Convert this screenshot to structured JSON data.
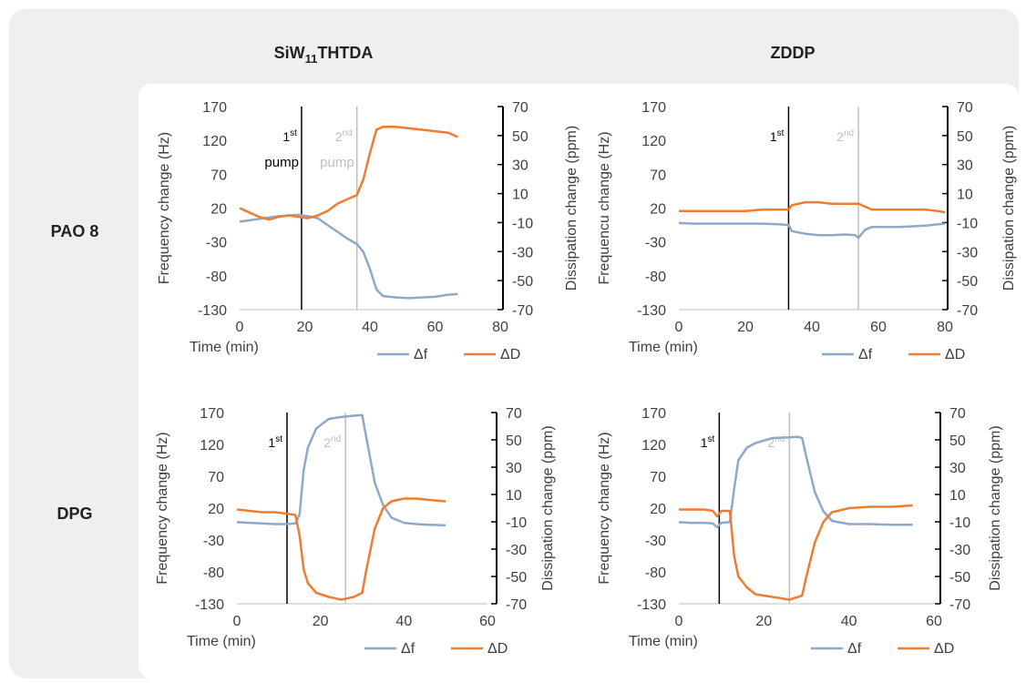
{
  "column_headers": [
    [
      "SiW",
      "11",
      "THTDA"
    ],
    [
      "ZDDP"
    ]
  ],
  "row_headers": [
    "PAO 8",
    "DPG"
  ],
  "chart_data": [
    {
      "type": "line",
      "xlabel": "Time (min)",
      "ylabel": "Frequency change (Hz)",
      "y2label": "Dissipation change (ppm)",
      "xlim": [
        0,
        80
      ],
      "xticks": [
        0,
        20,
        40,
        60,
        80
      ],
      "ylim": [
        -130,
        170
      ],
      "yticks": [
        -130,
        -80,
        -30,
        20,
        70,
        120,
        170
      ],
      "y2lim": [
        -70,
        70
      ],
      "y2ticks": [
        -70,
        -50,
        -30,
        -10,
        10,
        30,
        50,
        70
      ],
      "x": [
        0,
        3,
        6,
        9,
        12,
        15,
        18,
        21,
        24,
        27,
        30,
        33,
        36,
        38,
        40,
        42,
        44,
        48,
        52,
        56,
        60,
        64,
        67
      ],
      "series": [
        {
          "name": "Δf",
          "color": "#8ea9c8",
          "values": [
            0,
            2,
            4,
            6,
            8,
            9,
            10,
            8,
            5,
            -5,
            -15,
            -25,
            -33,
            -45,
            -70,
            -100,
            -110,
            -112,
            -113,
            -112,
            -111,
            -108,
            -107
          ]
        },
        {
          "name": "ΔD",
          "color": "#ed7d31",
          "axis": "y2",
          "values": [
            0,
            -3,
            -6,
            -8,
            -6,
            -5,
            -6,
            -7,
            -5,
            -2,
            3,
            6,
            9,
            20,
            38,
            54,
            56,
            56,
            55,
            54,
            53,
            52,
            49
          ]
        }
      ],
      "annotations": [
        {
          "x": 19,
          "label": "1",
          "sup": "st",
          "line2": "pump",
          "color": "#000000"
        },
        {
          "x": 36,
          "label": "2",
          "sup": "nd",
          "line2": "pump",
          "color": "#bfbfbf"
        }
      ]
    },
    {
      "type": "line",
      "xlabel": "Time (min)",
      "ylabel": "Frequencu change (Hz)",
      "y2label": "Dissipation change (ppm)",
      "xlim": [
        0,
        80
      ],
      "xticks": [
        0,
        20,
        40,
        60,
        80
      ],
      "ylim": [
        -130,
        170
      ],
      "yticks": [
        -130,
        -80,
        -30,
        20,
        70,
        120,
        170
      ],
      "y2lim": [
        -70,
        70
      ],
      "y2ticks": [
        -70,
        -50,
        -30,
        -10,
        10,
        30,
        50,
        70
      ],
      "x": [
        0,
        5,
        10,
        15,
        20,
        25,
        30,
        33,
        34,
        38,
        42,
        46,
        50,
        53,
        54,
        56,
        58,
        62,
        66,
        70,
        74,
        78,
        80
      ],
      "series": [
        {
          "name": "Δf",
          "color": "#8ea9c8",
          "values": [
            -2,
            -3,
            -3,
            -3,
            -3,
            -3,
            -4,
            -5,
            -14,
            -18,
            -20,
            -20,
            -19,
            -20,
            -24,
            -12,
            -8,
            -8,
            -8,
            -7,
            -6,
            -4,
            -3
          ]
        },
        {
          "name": "ΔD",
          "color": "#ed7d31",
          "axis": "y2",
          "values": [
            -2,
            -2,
            -2,
            -2,
            -2,
            -1,
            -1,
            -1,
            2,
            4,
            4,
            3,
            3,
            3,
            3,
            1,
            -1,
            -1,
            -1,
            -1,
            -1,
            -2,
            -3
          ]
        }
      ],
      "annotations": [
        {
          "x": 33,
          "label": "1",
          "sup": "st",
          "color": "#000000"
        },
        {
          "x": 54,
          "label": "2",
          "sup": "nd",
          "color": "#bfbfbf"
        }
      ]
    },
    {
      "type": "line",
      "xlabel": "Time (min)",
      "ylabel": "Frequency change (Hz)",
      "y2label": "Dissipation change (ppm)",
      "xlim": [
        0,
        60
      ],
      "xticks": [
        0,
        20,
        40,
        60
      ],
      "ylim": [
        -130,
        170
      ],
      "yticks": [
        -130,
        -80,
        -30,
        20,
        70,
        120,
        170
      ],
      "y2lim": [
        -70,
        70
      ],
      "y2ticks": [
        -70,
        -50,
        -30,
        -10,
        10,
        30,
        50,
        70
      ],
      "x": [
        0,
        3,
        6,
        9,
        12,
        14,
        15,
        16,
        17,
        19,
        22,
        25,
        28,
        30,
        31,
        33,
        35,
        37,
        40,
        43,
        46,
        50
      ],
      "series": [
        {
          "name": "Δf",
          "color": "#8ea9c8",
          "values": [
            -2,
            -3,
            -4,
            -5,
            -5,
            -4,
            10,
            80,
            115,
            145,
            160,
            163,
            165,
            166,
            130,
            60,
            25,
            5,
            -3,
            -5,
            -6,
            -7
          ]
        },
        {
          "name": "ΔD",
          "color": "#ed7d31",
          "axis": "y2",
          "values": [
            -1,
            -2,
            -3,
            -3,
            -4,
            -5,
            -20,
            -45,
            -55,
            -62,
            -65,
            -67,
            -65,
            -62,
            -45,
            -15,
            0,
            5,
            7,
            7,
            6,
            5
          ]
        }
      ],
      "annotations": [
        {
          "x": 12,
          "label": "1",
          "sup": "st",
          "color": "#000000"
        },
        {
          "x": 26,
          "label": "2",
          "sup": "nd",
          "color": "#bfbfbf"
        }
      ]
    },
    {
      "type": "line",
      "xlabel": "Time (min)",
      "ylabel": "Frequency change (Hz)",
      "y2label": "Dissipation change (ppm)",
      "xlim": [
        0,
        60
      ],
      "xticks": [
        0,
        20,
        40,
        60
      ],
      "ylim": [
        -130,
        170
      ],
      "yticks": [
        -130,
        -80,
        -30,
        20,
        70,
        120,
        170
      ],
      "y2lim": [
        -70,
        70
      ],
      "y2ticks": [
        -70,
        -50,
        -30,
        -10,
        10,
        30,
        50,
        70
      ],
      "x": [
        0,
        3,
        6,
        8,
        9,
        10,
        12,
        13,
        14,
        16,
        18,
        22,
        26,
        28,
        29,
        30,
        32,
        34,
        36,
        40,
        45,
        50,
        55
      ],
      "series": [
        {
          "name": "Δf",
          "color": "#8ea9c8",
          "values": [
            -2,
            -3,
            -3,
            -4,
            -10,
            -3,
            -2,
            50,
            95,
            115,
            122,
            130,
            131,
            132,
            130,
            100,
            45,
            15,
            0,
            -5,
            -5,
            -6,
            -6
          ]
        },
        {
          "name": "ΔD",
          "color": "#ed7d31",
          "axis": "y2",
          "values": [
            -1,
            -1,
            -1,
            -2,
            -6,
            -2,
            -2,
            -35,
            -50,
            -58,
            -63,
            -65,
            -67,
            -65,
            -64,
            -50,
            -25,
            -10,
            -3,
            0,
            1,
            1,
            2
          ]
        }
      ],
      "annotations": [
        {
          "x": 9.5,
          "label": "1",
          "sup": "st",
          "color": "#000000"
        },
        {
          "x": 26,
          "label": "2",
          "sup": "nd",
          "color": "#bfbfbf"
        }
      ]
    }
  ]
}
